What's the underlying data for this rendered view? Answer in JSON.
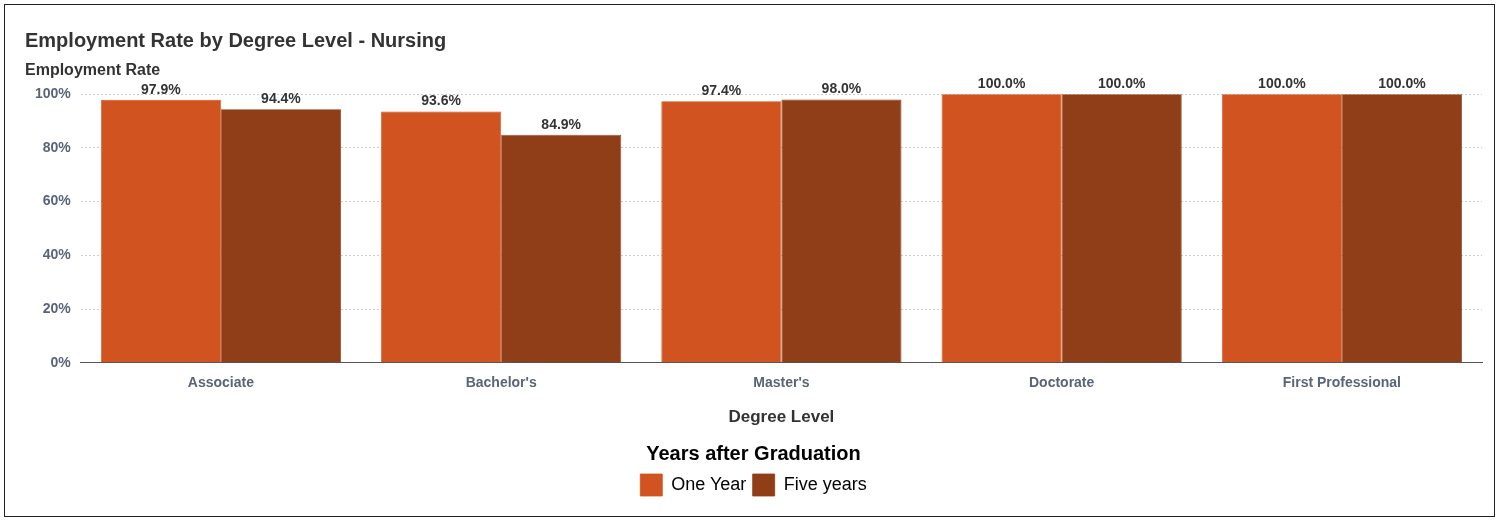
{
  "chart_data": {
    "type": "bar",
    "title": "Employment Rate by Degree Level - Nursing",
    "ylabel": "Employment Rate",
    "xlabel": "Degree Level",
    "legend_title": "Years after Graduation",
    "categories": [
      "Associate",
      "Bachelor's",
      "Master's",
      "Doctorate",
      "First Professional"
    ],
    "series": [
      {
        "name": "One Year",
        "color": "#d15320",
        "values": [
          97.9,
          93.6,
          97.4,
          100.0,
          100.0
        ],
        "value_labels": [
          "97.9%",
          "93.6%",
          "97.4%",
          "100.0%",
          "100.0%"
        ]
      },
      {
        "name": "Five years",
        "color": "#8f3e17",
        "values": [
          94.4,
          84.9,
          98.0,
          100.0,
          100.0
        ],
        "value_labels": [
          "94.4%",
          "84.9%",
          "98.0%",
          "100.0%",
          "100.0%"
        ]
      }
    ],
    "ylim": [
      0,
      100
    ],
    "yticks": [
      {
        "value": 0,
        "label": "0%"
      },
      {
        "value": 20,
        "label": "20%"
      },
      {
        "value": 40,
        "label": "40%"
      },
      {
        "value": 60,
        "label": "60%"
      },
      {
        "value": 80,
        "label": "80%"
      },
      {
        "value": 100,
        "label": "100%"
      }
    ],
    "grid": "y",
    "legend": "bottom"
  }
}
